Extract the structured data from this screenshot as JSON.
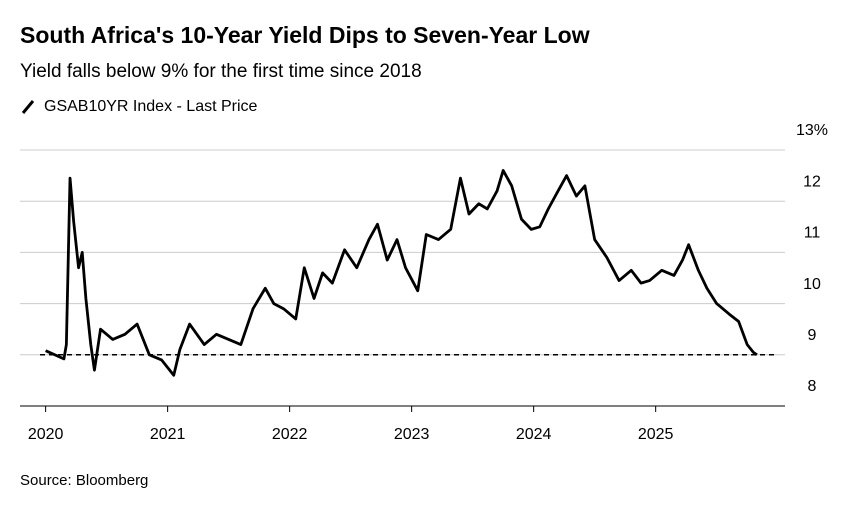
{
  "chart_data": {
    "type": "line",
    "title": "South Africa's 10-Year Yield Dips to Seven-Year Low",
    "subtitle": "Yield falls below 9% for the first time since 2018",
    "source": "Source: Bloomberg",
    "x": [
      2020.0,
      2020.15,
      2020.17,
      2020.2,
      2020.23,
      2020.27,
      2020.3,
      2020.33,
      2020.37,
      2020.4,
      2020.45,
      2020.55,
      2020.65,
      2020.75,
      2020.85,
      2020.95,
      2021.05,
      2021.1,
      2021.18,
      2021.3,
      2021.4,
      2021.5,
      2021.6,
      2021.7,
      2021.8,
      2021.87,
      2021.95,
      2022.05,
      2022.12,
      2022.2,
      2022.27,
      2022.35,
      2022.45,
      2022.55,
      2022.65,
      2022.72,
      2022.8,
      2022.88,
      2022.95,
      2023.05,
      2023.12,
      2023.22,
      2023.32,
      2023.4,
      2023.47,
      2023.55,
      2023.62,
      2023.7,
      2023.75,
      2023.82,
      2023.9,
      2023.98,
      2024.05,
      2024.12,
      2024.2,
      2024.27,
      2024.35,
      2024.42,
      2024.5,
      2024.6,
      2024.7,
      2024.8,
      2024.88,
      2024.95,
      2025.05,
      2025.15,
      2025.22,
      2025.27,
      2025.35,
      2025.42,
      2025.5,
      2025.6,
      2025.68,
      2025.75,
      2025.8,
      2025.83
    ],
    "series": [
      {
        "name": "GSAB10YR Index - Last Price",
        "color": "#000000",
        "values": [
          9.08,
          8.92,
          9.2,
          12.45,
          11.6,
          10.7,
          11.0,
          10.1,
          9.2,
          8.7,
          9.5,
          9.3,
          9.4,
          9.6,
          9.0,
          8.9,
          8.6,
          9.1,
          9.6,
          9.2,
          9.4,
          9.3,
          9.2,
          9.9,
          10.3,
          10.0,
          9.9,
          9.7,
          10.7,
          10.1,
          10.6,
          10.4,
          11.05,
          10.7,
          11.25,
          11.55,
          10.85,
          11.25,
          10.7,
          10.25,
          11.35,
          11.25,
          11.45,
          12.45,
          11.75,
          11.95,
          11.85,
          12.2,
          12.6,
          12.3,
          11.65,
          11.45,
          11.5,
          11.85,
          12.2,
          12.5,
          12.1,
          12.3,
          11.25,
          10.9,
          10.45,
          10.65,
          10.4,
          10.45,
          10.65,
          10.55,
          10.85,
          11.15,
          10.65,
          10.3,
          10.0,
          9.8,
          9.65,
          9.2,
          9.05,
          9.0
        ]
      }
    ],
    "xlim": [
      2019.79,
      2026.06
    ],
    "xticks": [
      2020,
      2021,
      2022,
      2023,
      2024,
      2025
    ],
    "ylim": [
      8,
      13
    ],
    "yticks": [
      8,
      9,
      10,
      11,
      12,
      {
        "value": 13,
        "label": "13%"
      }
    ],
    "hline": 9,
    "grid": true
  }
}
